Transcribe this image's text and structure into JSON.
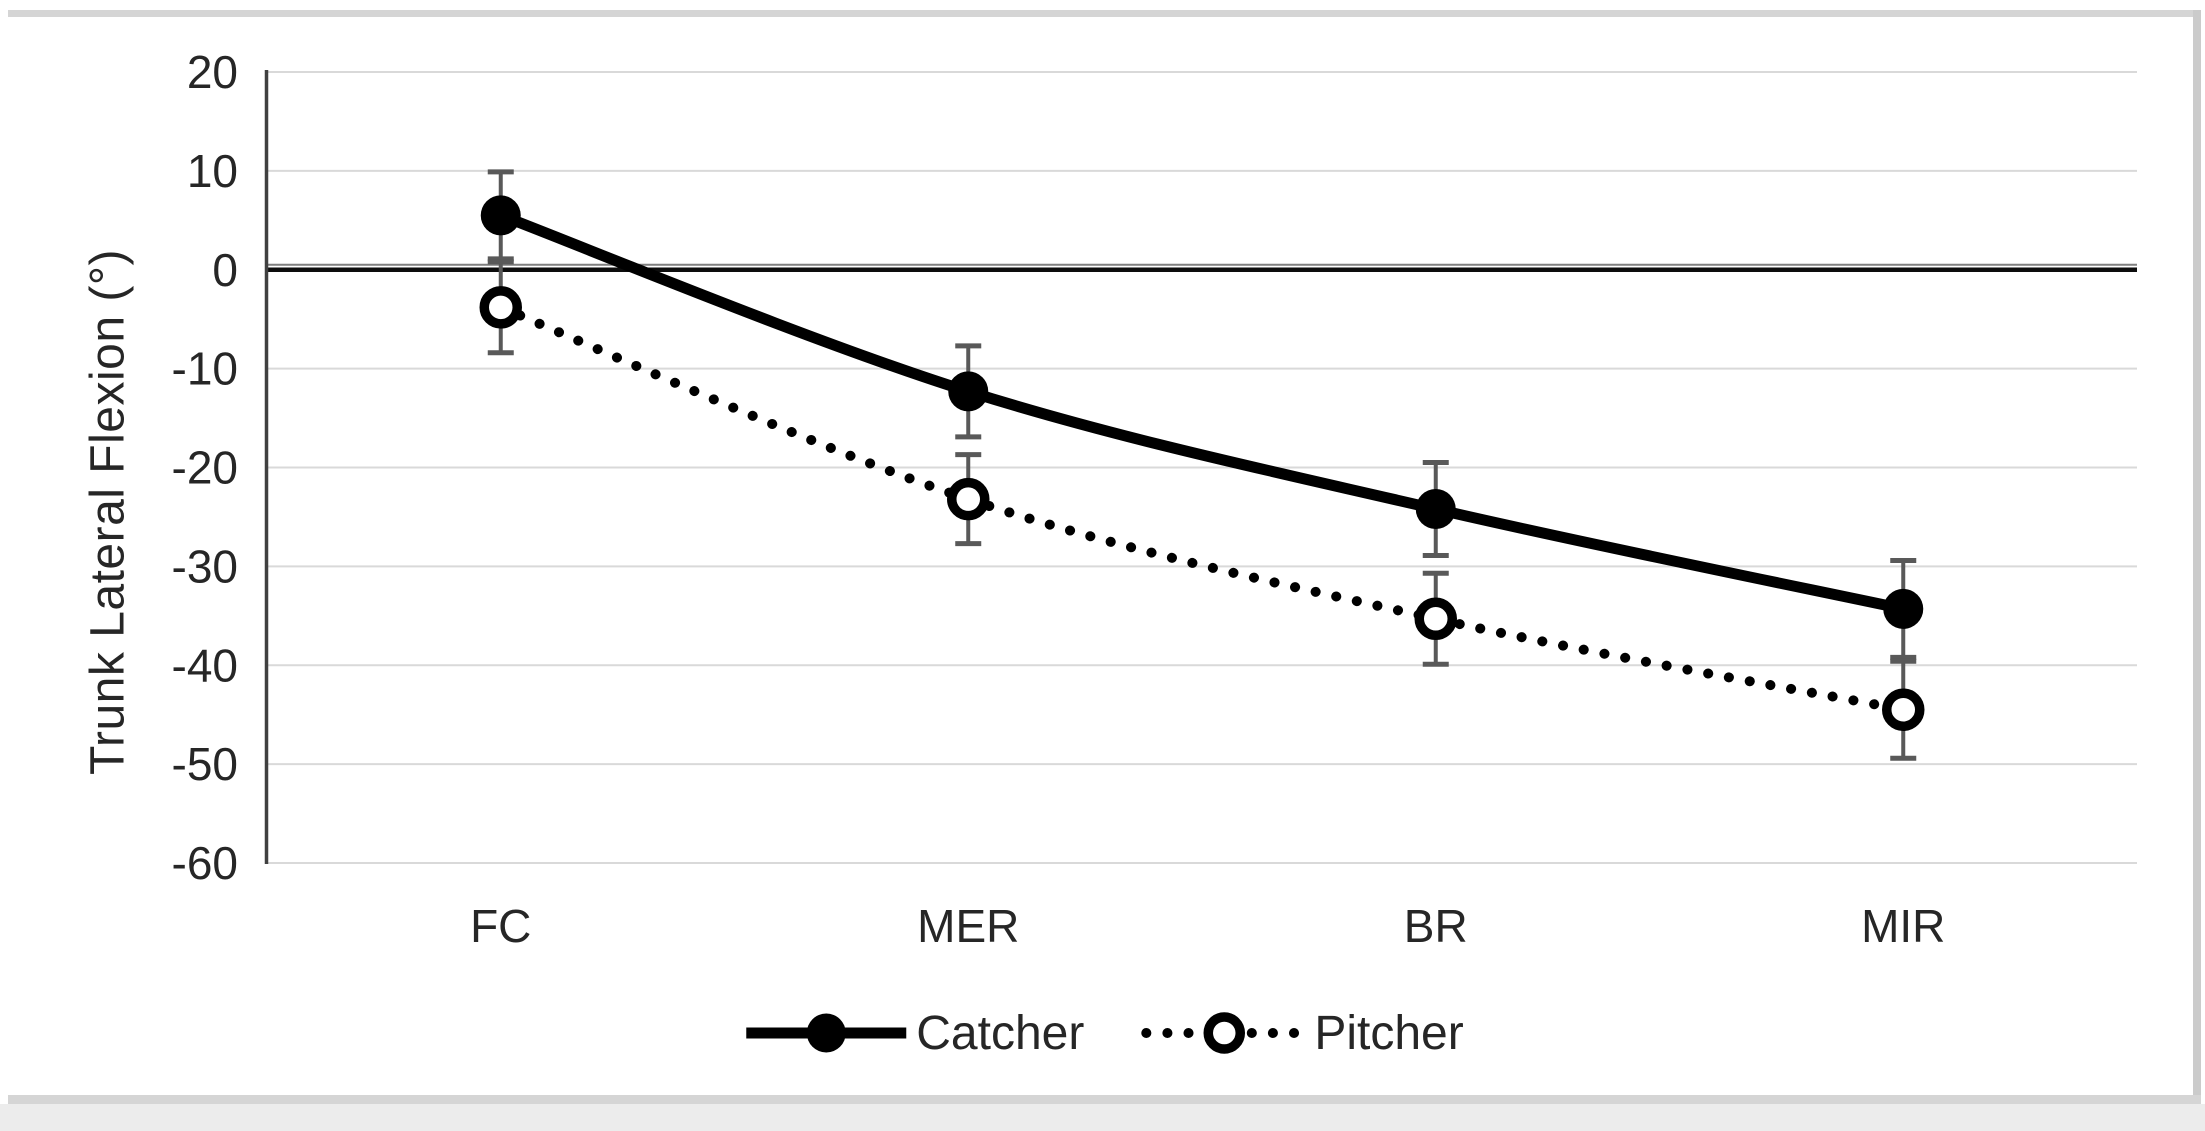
{
  "chart_data": {
    "type": "line",
    "title": "",
    "xlabel": "",
    "ylabel": "Trunk Lateral Flexion (°)",
    "categories": [
      "FC",
      "MER",
      "BR",
      "MIR"
    ],
    "series": [
      {
        "name": "Catcher",
        "line_style": "solid",
        "marker": "filled-circle",
        "values": [
          5.5,
          -12.3,
          -24.2,
          -34.3
        ],
        "errors": [
          4.4,
          4.6,
          4.7,
          4.9
        ]
      },
      {
        "name": "Pitcher",
        "line_style": "dotted",
        "marker": "open-circle",
        "values": [
          -3.8,
          -23.2,
          -35.3,
          -44.5
        ],
        "errors": [
          4.6,
          4.5,
          4.6,
          4.9
        ]
      }
    ],
    "ylim": [
      -60,
      20
    ],
    "yticks": [
      20,
      10,
      0,
      -10,
      -20,
      -30,
      -40,
      -50,
      -60
    ],
    "grid": true,
    "legend_position": "bottom",
    "colors": {
      "series_line": "#000000",
      "marker_fill": "#000000",
      "open_marker_fill": "#ffffff",
      "error_bar": "#595959",
      "gridline": "#d9d9d9",
      "zero_gridline": "#7f7f7f",
      "zero_axis_line": "#0d0d0d",
      "y_axis_line": "#404040",
      "text": "#262626",
      "frame_rule": "#d5d5d5"
    }
  }
}
